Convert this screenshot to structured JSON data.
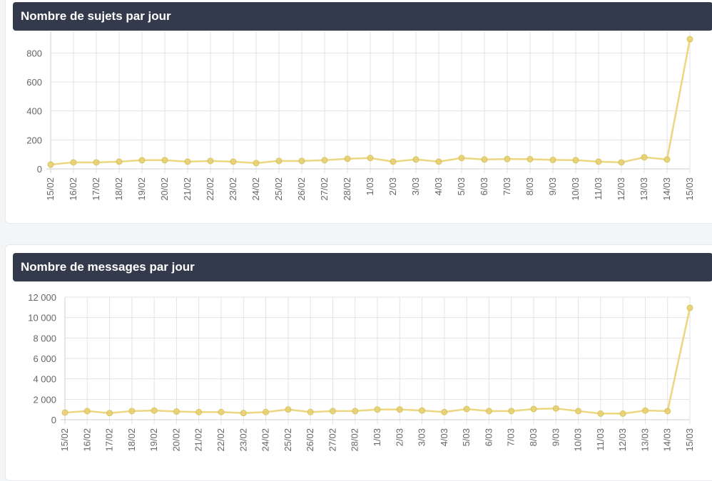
{
  "colors": {
    "header_bg": "#323a4b",
    "series": "#ecd67f",
    "series_point": "#e5cf6e"
  },
  "chart_data": [
    {
      "type": "line",
      "title": "Nombre de sujets par jour",
      "x": [
        "15/02",
        "16/02",
        "17/02",
        "18/02",
        "19/02",
        "20/02",
        "21/02",
        "22/02",
        "23/02",
        "24/02",
        "25/02",
        "26/02",
        "27/02",
        "28/02",
        "1/03",
        "2/03",
        "3/03",
        "4/03",
        "5/03",
        "6/03",
        "7/03",
        "8/03",
        "9/03",
        "10/03",
        "11/03",
        "12/03",
        "13/03",
        "14/03",
        "15/03"
      ],
      "series": [
        {
          "values": [
            30,
            45,
            45,
            50,
            60,
            60,
            50,
            55,
            50,
            40,
            55,
            55,
            60,
            70,
            75,
            50,
            65,
            50,
            75,
            65,
            68,
            67,
            62,
            60,
            50,
            45,
            80,
            65,
            895
          ]
        }
      ],
      "ylim": [
        0,
        900
      ],
      "yticks": [
        0,
        200,
        400,
        600,
        800
      ],
      "ytick_labels": [
        "0",
        "200",
        "400",
        "600",
        "800"
      ],
      "grid": true
    },
    {
      "type": "line",
      "title": "Nombre de messages par jour",
      "x": [
        "15/02",
        "16/02",
        "17/02",
        "18/02",
        "19/02",
        "20/02",
        "21/02",
        "22/02",
        "23/02",
        "24/02",
        "25/02",
        "26/02",
        "27/02",
        "28/02",
        "1/03",
        "2/03",
        "3/03",
        "4/03",
        "5/03",
        "6/03",
        "7/03",
        "8/03",
        "9/03",
        "10/03",
        "11/03",
        "12/03",
        "13/03",
        "14/03",
        "15/03"
      ],
      "series": [
        {
          "values": [
            700,
            850,
            650,
            850,
            900,
            800,
            750,
            750,
            650,
            750,
            1000,
            750,
            850,
            850,
            1000,
            1000,
            900,
            750,
            1050,
            850,
            850,
            1050,
            1100,
            850,
            600,
            600,
            900,
            850,
            10950
          ]
        }
      ],
      "ylim": [
        0,
        12000
      ],
      "yticks": [
        0,
        2000,
        4000,
        6000,
        8000,
        10000,
        12000
      ],
      "ytick_labels": [
        "0",
        "2 000",
        "4 000",
        "6 000",
        "8 000",
        "10 000",
        "12 000"
      ],
      "grid": true
    }
  ]
}
